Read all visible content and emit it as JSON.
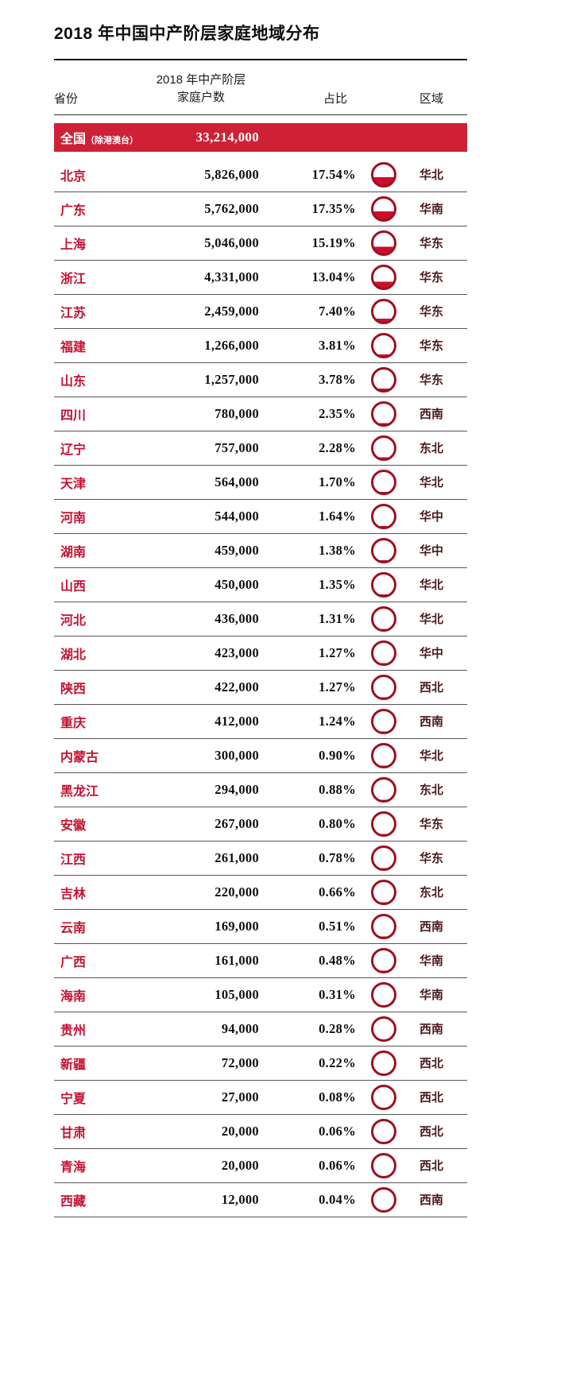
{
  "title": "2018 年中国中产阶层家庭地域分布",
  "table": {
    "headers": {
      "province": "省份",
      "households_line1": "2018 年中产阶层",
      "households_line2": "家庭户数",
      "share": "占比",
      "region": "区域"
    },
    "total": {
      "label_main": "全国",
      "label_paren": "（除港澳台）",
      "households": "33,214,000"
    },
    "rows": [
      {
        "province": "北京",
        "households": "5,826,000",
        "share": "17.54%",
        "share_value": 17.54,
        "region": "华北"
      },
      {
        "province": "广东",
        "households": "5,762,000",
        "share": "17.35%",
        "share_value": 17.35,
        "region": "华南"
      },
      {
        "province": "上海",
        "households": "5,046,000",
        "share": "15.19%",
        "share_value": 15.19,
        "region": "华东"
      },
      {
        "province": "浙江",
        "households": "4,331,000",
        "share": "13.04%",
        "share_value": 13.04,
        "region": "华东"
      },
      {
        "province": "江苏",
        "households": "2,459,000",
        "share": "7.40%",
        "share_value": 7.4,
        "region": "华东"
      },
      {
        "province": "福建",
        "households": "1,266,000",
        "share": "3.81%",
        "share_value": 3.81,
        "region": "华东"
      },
      {
        "province": "山东",
        "households": "1,257,000",
        "share": "3.78%",
        "share_value": 3.78,
        "region": "华东"
      },
      {
        "province": "四川",
        "households": "780,000",
        "share": "2.35%",
        "share_value": 2.35,
        "region": "西南"
      },
      {
        "province": "辽宁",
        "households": "757,000",
        "share": "2.28%",
        "share_value": 2.28,
        "region": "东北"
      },
      {
        "province": "天津",
        "households": "564,000",
        "share": "1.70%",
        "share_value": 1.7,
        "region": "华北"
      },
      {
        "province": "河南",
        "households": "544,000",
        "share": "1.64%",
        "share_value": 1.64,
        "region": "华中"
      },
      {
        "province": "湖南",
        "households": "459,000",
        "share": "1.38%",
        "share_value": 1.38,
        "region": "华中"
      },
      {
        "province": "山西",
        "households": "450,000",
        "share": "1.35%",
        "share_value": 1.35,
        "region": "华北"
      },
      {
        "province": "河北",
        "households": "436,000",
        "share": "1.31%",
        "share_value": 1.31,
        "region": "华北"
      },
      {
        "province": "湖北",
        "households": "423,000",
        "share": "1.27%",
        "share_value": 1.27,
        "region": "华中"
      },
      {
        "province": "陕西",
        "households": "422,000",
        "share": "1.27%",
        "share_value": 1.27,
        "region": "西北"
      },
      {
        "province": "重庆",
        "households": "412,000",
        "share": "1.24%",
        "share_value": 1.24,
        "region": "西南"
      },
      {
        "province": "内蒙古",
        "households": "300,000",
        "share": "0.90%",
        "share_value": 0.9,
        "region": "华北"
      },
      {
        "province": "黑龙江",
        "households": "294,000",
        "share": "0.88%",
        "share_value": 0.88,
        "region": "东北"
      },
      {
        "province": "安徽",
        "households": "267,000",
        "share": "0.80%",
        "share_value": 0.8,
        "region": "华东"
      },
      {
        "province": "江西",
        "households": "261,000",
        "share": "0.78%",
        "share_value": 0.78,
        "region": "华东"
      },
      {
        "province": "吉林",
        "households": "220,000",
        "share": "0.66%",
        "share_value": 0.66,
        "region": "东北"
      },
      {
        "province": "云南",
        "households": "169,000",
        "share": "0.51%",
        "share_value": 0.51,
        "region": "西南"
      },
      {
        "province": "广西",
        "households": "161,000",
        "share": "0.48%",
        "share_value": 0.48,
        "region": "华南"
      },
      {
        "province": "海南",
        "households": "105,000",
        "share": "0.31%",
        "share_value": 0.31,
        "region": "华南"
      },
      {
        "province": "贵州",
        "households": "94,000",
        "share": "0.28%",
        "share_value": 0.28,
        "region": "西南"
      },
      {
        "province": "新疆",
        "households": "72,000",
        "share": "0.22%",
        "share_value": 0.22,
        "region": "西北"
      },
      {
        "province": "宁夏",
        "households": "27,000",
        "share": "0.08%",
        "share_value": 0.08,
        "region": "西北"
      },
      {
        "province": "甘肃",
        "households": "20,000",
        "share": "0.06%",
        "share_value": 0.06,
        "region": "西北"
      },
      {
        "province": "青海",
        "households": "20,000",
        "share": "0.06%",
        "share_value": 0.06,
        "region": "西北"
      },
      {
        "province": "西藏",
        "households": "12,000",
        "share": "0.04%",
        "share_value": 0.04,
        "region": "西南"
      }
    ]
  },
  "colors": {
    "accent_red": "#ce2136",
    "province_red": "#c41230",
    "pie_border": "#9e1020",
    "pie_fill": "#c8102e",
    "region_dark": "#4a1a1a"
  },
  "chart_data": {
    "type": "table",
    "title": "2018 年中国中产阶层家庭地域分布",
    "columns": [
      "省份",
      "2018 年中产阶层家庭户数",
      "占比",
      "区域"
    ],
    "total": {
      "province": "全国（除港澳台）",
      "households": 33214000
    },
    "provinces": [
      "北京",
      "广东",
      "上海",
      "浙江",
      "江苏",
      "福建",
      "山东",
      "四川",
      "辽宁",
      "天津",
      "河南",
      "湖南",
      "山西",
      "河北",
      "湖北",
      "陕西",
      "重庆",
      "内蒙古",
      "黑龙江",
      "安徽",
      "江西",
      "吉林",
      "云南",
      "广西",
      "海南",
      "贵州",
      "新疆",
      "宁夏",
      "甘肃",
      "青海",
      "西藏"
    ],
    "households": [
      5826000,
      5762000,
      5046000,
      4331000,
      2459000,
      1266000,
      1257000,
      780000,
      757000,
      564000,
      544000,
      459000,
      450000,
      436000,
      423000,
      422000,
      412000,
      300000,
      294000,
      267000,
      261000,
      220000,
      169000,
      161000,
      105000,
      94000,
      72000,
      27000,
      20000,
      20000,
      12000
    ],
    "share_percent": [
      17.54,
      17.35,
      15.19,
      13.04,
      7.4,
      3.81,
      3.78,
      2.35,
      2.28,
      1.7,
      1.64,
      1.38,
      1.35,
      1.31,
      1.27,
      1.27,
      1.24,
      0.9,
      0.88,
      0.8,
      0.78,
      0.66,
      0.51,
      0.48,
      0.31,
      0.28,
      0.22,
      0.08,
      0.06,
      0.06,
      0.04
    ],
    "regions": [
      "华北",
      "华南",
      "华东",
      "华东",
      "华东",
      "华东",
      "华东",
      "西南",
      "东北",
      "华北",
      "华中",
      "华中",
      "华北",
      "华北",
      "华中",
      "西北",
      "西南",
      "华北",
      "东北",
      "华东",
      "华东",
      "东北",
      "西南",
      "华南",
      "华南",
      "西南",
      "西北",
      "西北",
      "西北",
      "西北",
      "西南"
    ],
    "indicator": "mini pie/circle per row filled proportionally to 占比"
  }
}
